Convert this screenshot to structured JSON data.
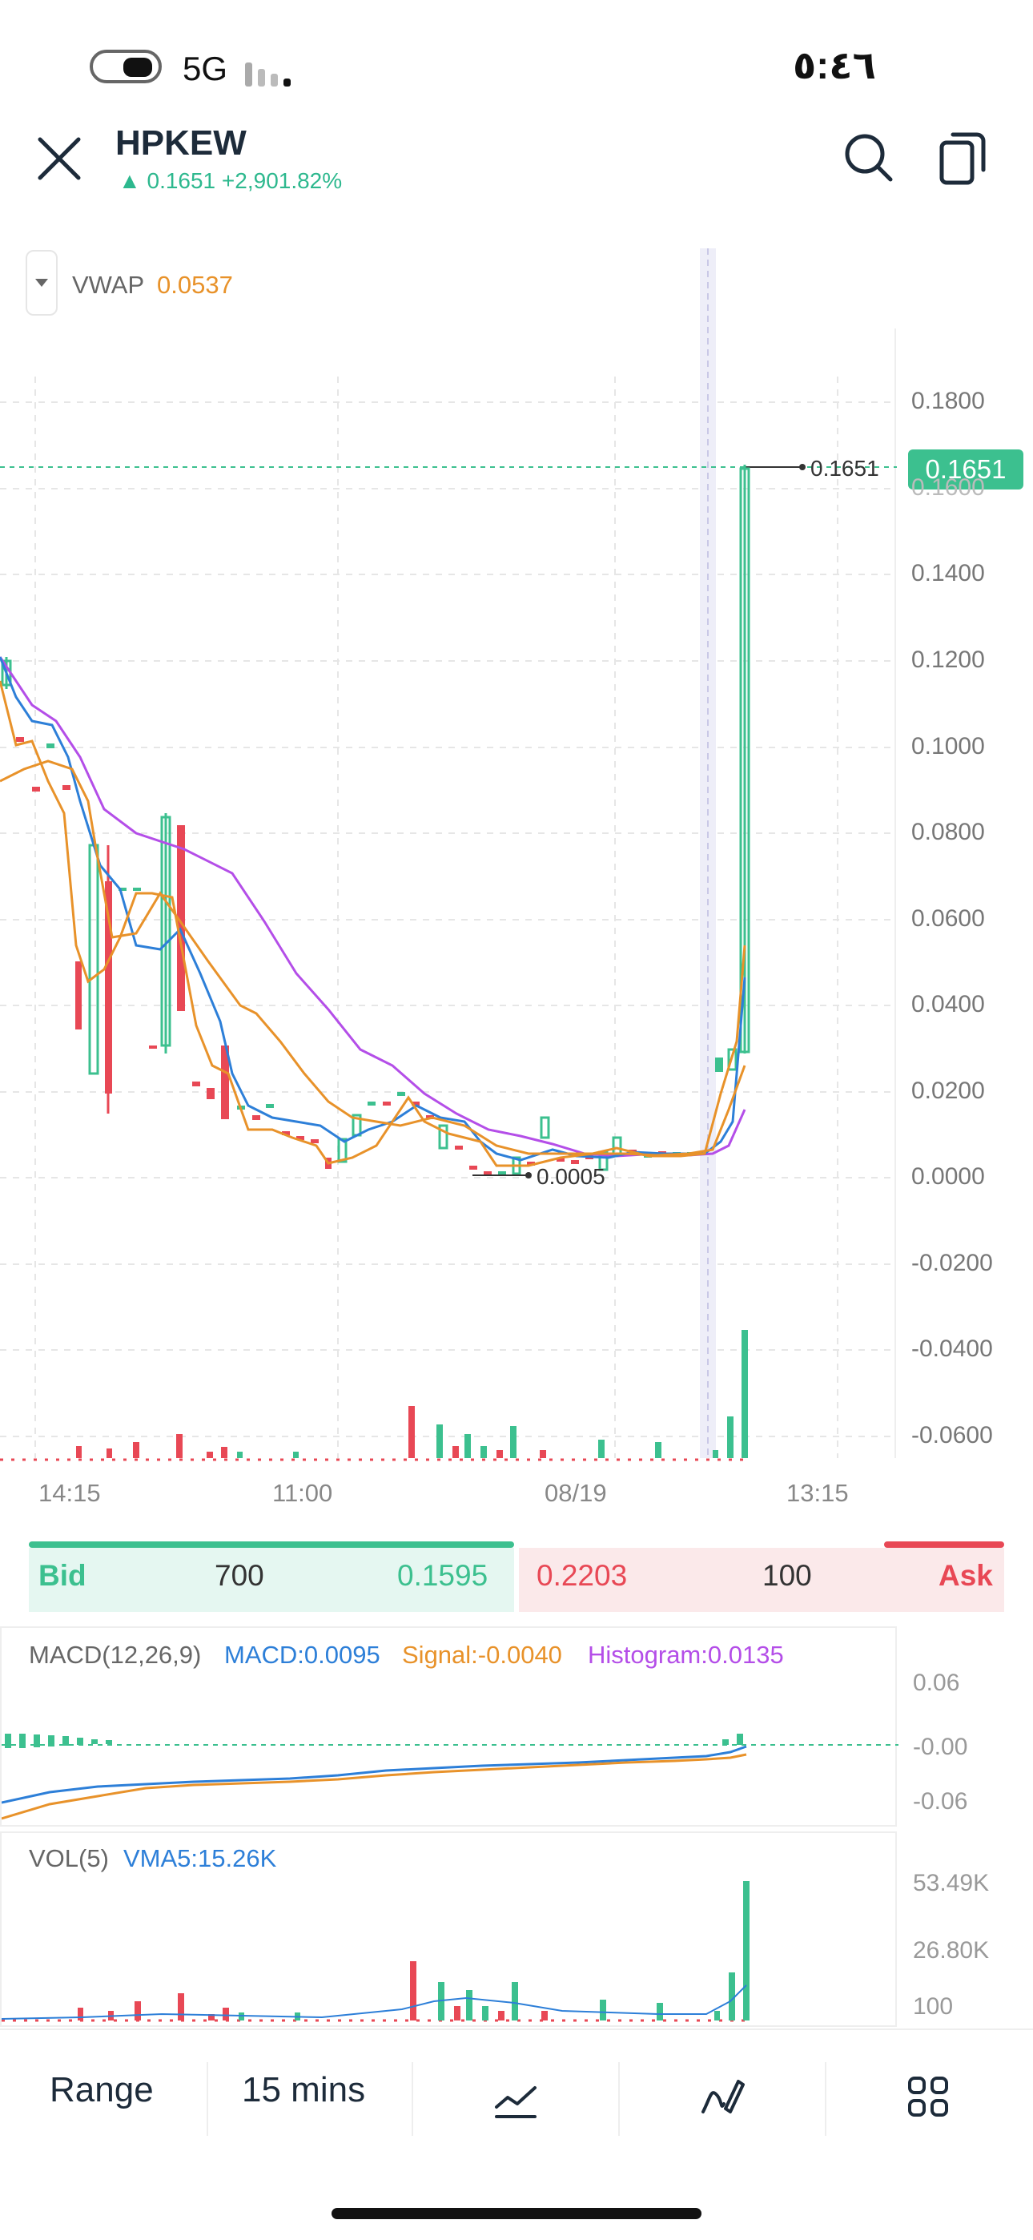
{
  "status_bar": {
    "network": "5G",
    "time": "٥:٤٦"
  },
  "header": {
    "ticker": "HPKEW",
    "price_change": "▲ 0.1651 +2,901.82%",
    "icons": [
      "close-icon",
      "search-icon",
      "copy-icon"
    ]
  },
  "indicator": {
    "name": "VWAP",
    "value": "0.0537"
  },
  "main_chart": {
    "price_axis_labels": [
      "0.1800",
      "0.1600",
      "0.1400",
      "0.1200",
      "0.1000",
      "0.0800",
      "0.0600",
      "0.0400",
      "0.0200",
      "0.0000",
      "-0.0200",
      "-0.0400",
      "-0.0600"
    ],
    "time_axis_labels": [
      "14:15",
      "11:00",
      "08/19",
      "13:15"
    ],
    "last_price_label": "0.1651",
    "last_price_badge": "0.1651",
    "low_label": "0.0005"
  },
  "chart_data": {
    "type": "candlestick",
    "ylim": [
      -0.06,
      0.18
    ],
    "close": [
      0.118,
      0.098,
      0.092,
      0.09,
      0.058,
      0.048,
      0.068,
      0.067,
      0.084,
      0.04,
      0.03,
      0.02,
      0.017,
      0.012,
      0.018,
      0.012,
      0.011,
      0.004,
      0.013,
      0.015,
      0.018,
      0.019,
      0.015,
      0.01,
      0.005,
      0.004,
      0.0005,
      0.003,
      0.013,
      0.007,
      0.004,
      0.005,
      0.004,
      0.008,
      0.006,
      0.006,
      0.005,
      0.025,
      0.03,
      0.1651
    ],
    "macd": {
      "label": "MACD(12,26,9)",
      "macd": "MACD:0.0095",
      "signal": "Signal:-0.0040",
      "histogram": "Histogram:0.0135",
      "y_labels": [
        "0.06",
        "-0.00",
        "-0.06"
      ]
    },
    "volume": {
      "label": "VOL(5)",
      "vma5": "VMA5:15.26K",
      "y_labels": [
        "53.49K",
        "26.80K",
        "100"
      ]
    }
  },
  "quote": {
    "bid_label": "Bid",
    "bid_size": "700",
    "bid_price": "0.1595",
    "ask_price": "0.2203",
    "ask_size": "100",
    "ask_label": "Ask"
  },
  "toolbar": {
    "range_label": "Range",
    "interval_label": "15 mins",
    "icons": [
      "indicator-icon",
      "draw-icon",
      "grid-menu-icon"
    ]
  },
  "colors": {
    "up": "#3cc08f",
    "down": "#e84855",
    "vwap": "#e8922a",
    "ma_blue": "#2d7fd8",
    "ma_purple": "#b44ee8"
  }
}
